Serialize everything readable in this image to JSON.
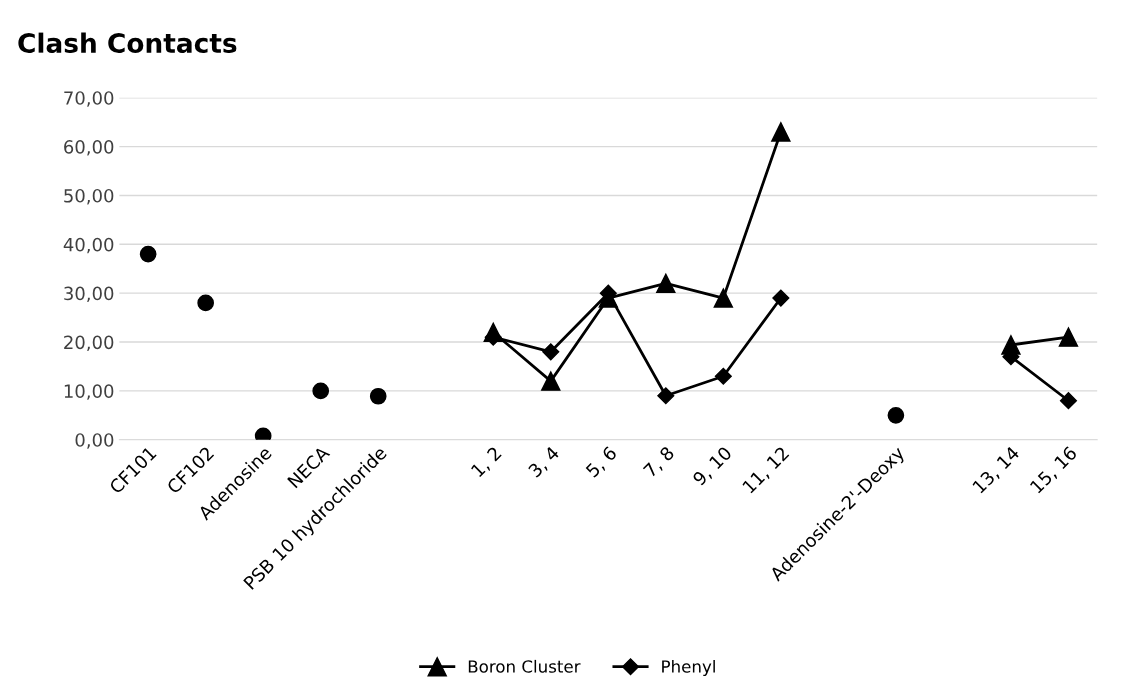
{
  "chart_data": {
    "type": "line",
    "title": "Clash Contacts",
    "categories": [
      "CF101",
      "CF102",
      "Adenosine",
      "NECA",
      "PSB 10 hydrochloride",
      null,
      "1, 2",
      "3, 4",
      "5, 6",
      "7, 8",
      "9, 10",
      "11, 12",
      null,
      "Adenosine-2'-Deoxy",
      null,
      "13, 14",
      "15, 16"
    ],
    "series": [
      {
        "type": "scatter",
        "color": "#000000",
        "marker": "circle",
        "values": [
          38,
          28,
          0.8,
          10,
          8.9,
          null,
          null,
          null,
          null,
          null,
          null,
          null,
          null,
          5,
          null,
          null,
          null
        ]
      },
      {
        "name": "Boron Cluster",
        "color": "#000000",
        "marker": "triangle",
        "values": [
          null,
          null,
          null,
          null,
          null,
          null,
          22,
          12,
          29,
          32,
          29,
          63,
          null,
          null,
          null,
          19.4,
          21
        ]
      },
      {
        "name": "Phenyl",
        "color": "#000000",
        "marker": "diamond",
        "values": [
          null,
          null,
          null,
          null,
          null,
          null,
          21,
          18,
          30,
          9,
          13,
          29,
          null,
          null,
          null,
          17,
          8
        ]
      }
    ],
    "ylim": [
      0,
      70
    ],
    "yticks": [
      {
        "value": 0,
        "label": "0,00"
      },
      {
        "value": 10,
        "label": "10,00"
      },
      {
        "value": 20,
        "label": "20,00"
      },
      {
        "value": 30,
        "label": "30,00"
      },
      {
        "value": 40,
        "label": "40,00"
      },
      {
        "value": 50,
        "label": "50,00"
      },
      {
        "value": 60,
        "label": "60,00"
      },
      {
        "value": 70,
        "label": "70,00"
      }
    ],
    "grid": "y",
    "legend": "bottom"
  }
}
